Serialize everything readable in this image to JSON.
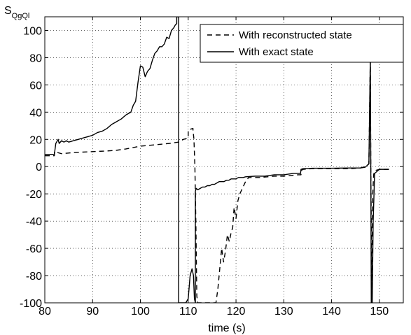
{
  "chart_data": {
    "type": "line",
    "ylabel": "S",
    "ylabel_subscript": "QgQl",
    "xlabel": "time (s)",
    "xlim": [
      80,
      155
    ],
    "ylim": [
      -100,
      110
    ],
    "xticks": [
      80,
      90,
      100,
      110,
      120,
      130,
      140,
      150
    ],
    "yticks": [
      -100,
      -80,
      -60,
      -40,
      -20,
      0,
      20,
      40,
      60,
      80,
      100
    ],
    "grid": "dotted",
    "legend_position": "top-right",
    "series": [
      {
        "name": "With reconstructed state",
        "style": "dashed",
        "color": "#000000",
        "x": [
          80,
          82,
          82,
          83.5,
          85,
          87,
          90,
          93,
          95,
          97,
          100,
          103,
          106,
          108,
          109,
          110,
          110,
          111,
          111,
          111.2,
          111.4,
          111.6,
          111.8,
          112,
          112.3,
          112.6,
          113,
          113.4,
          113.8,
          114.2,
          114.6,
          115,
          115.4,
          115.8,
          116.2,
          116.6,
          117,
          117.4,
          117.8,
          118.2,
          118.6,
          119,
          119.3,
          119.6,
          120,
          120.4,
          120.8,
          121.2,
          121.6,
          122,
          122.3,
          122.6,
          122.6,
          123,
          125,
          128,
          130,
          133,
          133.6,
          133.6,
          134,
          136,
          140,
          144,
          146,
          147,
          147.8,
          148.1,
          148.2,
          148.3,
          148.4,
          148.6,
          148.8,
          149,
          150,
          152
        ],
        "y": [
          8,
          8,
          11,
          9.5,
          10,
          10.5,
          11,
          11.5,
          12,
          13,
          15,
          16,
          17,
          18,
          20,
          21,
          27,
          28,
          27,
          20,
          0,
          -40,
          -95,
          -100,
          -100,
          -100,
          -100,
          -100,
          -100,
          -100,
          -100,
          -100,
          -100,
          -100,
          -90,
          -75,
          -60,
          -70,
          -62,
          -50,
          -55,
          -48,
          -45,
          -30,
          -38,
          -25,
          -20,
          -17,
          -14,
          -11,
          -10,
          -8,
          -8,
          -8,
          -8,
          -7,
          -7,
          -6,
          -6,
          -3,
          -2,
          -1.5,
          -1.5,
          -1.5,
          -1,
          0,
          2,
          80,
          0,
          -40,
          -100,
          -20,
          -6,
          -3,
          -2,
          -2
        ]
      },
      {
        "name": "With exact state",
        "style": "solid",
        "color": "#000000",
        "x": [
          80,
          82,
          82.3,
          82.8,
          83,
          83.5,
          84,
          84.5,
          85,
          86,
          87,
          88,
          89,
          90,
          91,
          92,
          93,
          94,
          95,
          96,
          97,
          98,
          98.5,
          99,
          99.5,
          100,
          100.5,
          101,
          101.5,
          102,
          102.5,
          103,
          103.5,
          104,
          104.5,
          105,
          105.5,
          106,
          106.5,
          107,
          107.3,
          107.6,
          107.6,
          107.7,
          107.8,
          108,
          108,
          108.5,
          109,
          109.5,
          110,
          110.4,
          110.8,
          111.1,
          111.3,
          111.5,
          111.5,
          111.7,
          112,
          112.5,
          113,
          113.5,
          114,
          114.5,
          115,
          115.5,
          116,
          116.5,
          117,
          117.5,
          118,
          118.5,
          119,
          119.5,
          120,
          120.5,
          121,
          121.5,
          122,
          124,
          126,
          128,
          130,
          132,
          133.5,
          133.6,
          134,
          136,
          138,
          140,
          142,
          144,
          146,
          147,
          147.8,
          148.1,
          148.2,
          148.3,
          148.4,
          148.5,
          148.7,
          149,
          150,
          152
        ],
        "y": [
          9,
          9,
          17,
          20,
          17,
          19,
          18,
          19,
          18,
          19,
          20,
          21,
          22,
          23,
          25,
          26,
          28,
          31,
          33,
          35,
          38,
          40,
          45,
          48,
          62,
          74,
          73,
          66,
          70,
          72,
          78,
          83,
          85,
          88,
          88,
          90,
          95,
          94,
          100,
          102,
          104,
          105,
          110,
          110,
          110,
          110,
          -100,
          -100,
          -100,
          -100,
          -97,
          -80,
          -75,
          -80,
          -97,
          -100,
          -18,
          -16,
          -17,
          -16,
          -15,
          -15,
          -14,
          -14,
          -13,
          -13,
          -12,
          -11,
          -11,
          -11,
          -10,
          -10,
          -9,
          -9,
          -9,
          -8,
          -8,
          -8,
          -7.5,
          -7,
          -7,
          -6,
          -6,
          -5,
          -5,
          -2,
          -1.5,
          -1.2,
          -1.2,
          -1.2,
          -1.1,
          -1,
          -1,
          -0.5,
          2,
          80,
          0,
          -100,
          -100,
          -100,
          -40,
          -5,
          -2,
          -2
        ]
      }
    ]
  }
}
